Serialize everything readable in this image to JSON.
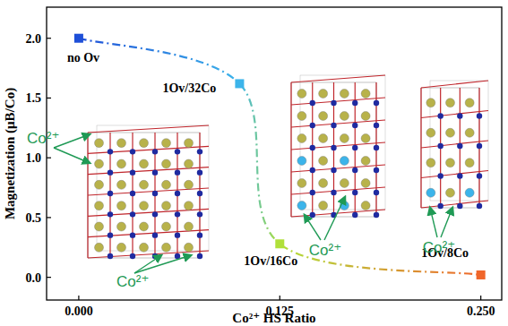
{
  "chart_data": {
    "type": "line",
    "xlabel": "Co²⁺ HS Ratio",
    "ylabel": "Magnetization (μB/Co)",
    "x": [
      0,
      0.1,
      0.125,
      0.25
    ],
    "values": [
      2.0,
      1.62,
      0.28,
      0.02
    ],
    "colors": [
      "#1e4fd8",
      "#3cb4ea",
      "#b0e03a",
      "#f0662a"
    ],
    "line_style": "dashdot",
    "marker": "square",
    "xlim": [
      -0.02,
      0.263
    ],
    "xticks": [
      {
        "value": 0,
        "label": "0.000"
      },
      0.125,
      {
        "value": 0.25,
        "label": "0.250"
      }
    ],
    "ylim": [
      -0.19,
      2.26
    ],
    "yticks": [
      {
        "value": 0,
        "label": "0.0"
      },
      {
        "value": 0.5,
        "label": "0.5"
      },
      {
        "value": 1,
        "label": "1.0"
      },
      {
        "value": 1.5,
        "label": "1.5"
      },
      {
        "value": 2,
        "label": "2.0"
      }
    ],
    "grid": false,
    "annotations": [
      "no Ov",
      "1Ov/32Co",
      "1Ov/16Co",
      "1Ov/8Co",
      "Co²⁺",
      "Co²⁺",
      "Co²⁺",
      "Co²⁺"
    ]
  }
}
